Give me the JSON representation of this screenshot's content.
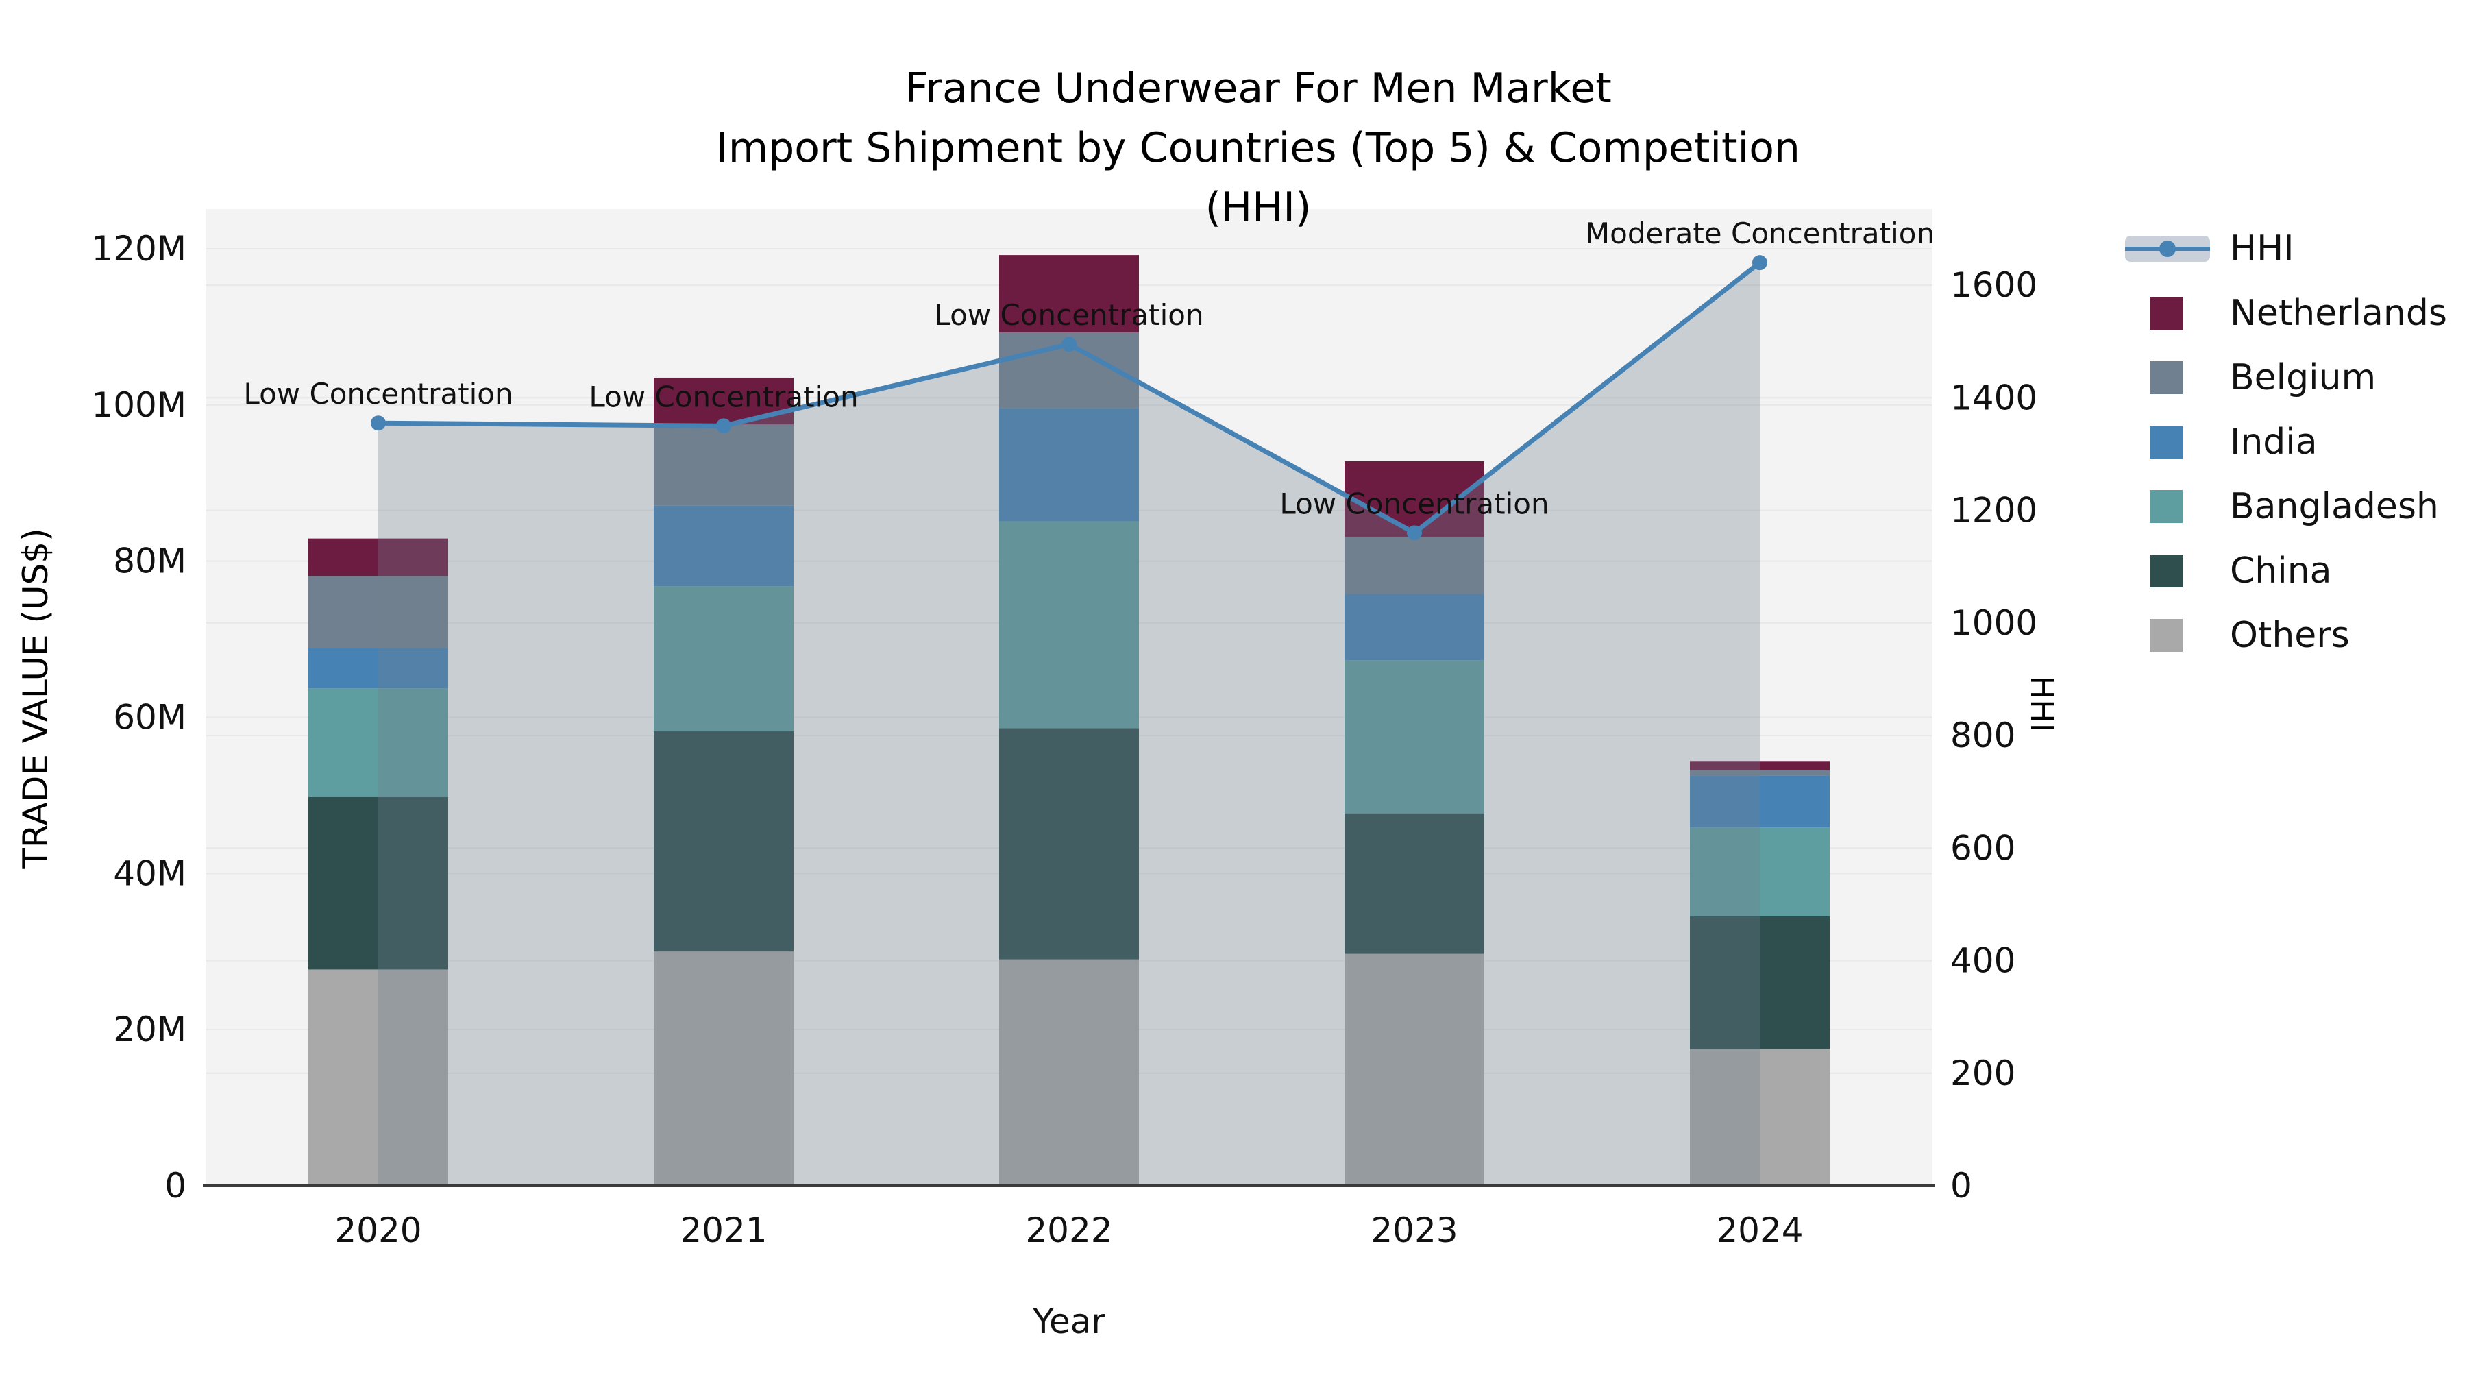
{
  "title": {
    "line1": "France Underwear For Men Market",
    "line2": "Import Shipment by Countries (Top 5) & Competition (HHI)"
  },
  "axes": {
    "x_label": "Year",
    "y_left_label": "TRADE VALUE (US$)",
    "y_right_label": "HHI",
    "y_left_ticks": [
      "0",
      "20M",
      "40M",
      "60M",
      "80M",
      "100M",
      "120M"
    ],
    "y_right_ticks": [
      "0",
      "200",
      "400",
      "600",
      "800",
      "1000",
      "1200",
      "1400",
      "1600"
    ]
  },
  "chart_data": {
    "type": "bar",
    "subtype": "stacked-bars-with-line",
    "categories": [
      "2020",
      "2021",
      "2022",
      "2023",
      "2024"
    ],
    "xlabel": "Year",
    "ylabel_left": "TRADE VALUE (US$)",
    "ylabel_right": "HHI",
    "ylim_left_millions": [
      0,
      125
    ],
    "ylim_right": [
      0,
      1735
    ],
    "grid": true,
    "legend_position": "right",
    "series": [
      {
        "name": "Netherlands",
        "color": "#6d1c41",
        "values_millions": [
          4.8,
          6.0,
          9.9,
          9.7,
          1.2
        ]
      },
      {
        "name": "Belgium",
        "color": "#708090",
        "values_millions": [
          9.2,
          10.4,
          9.7,
          7.3,
          0.7
        ]
      },
      {
        "name": "India",
        "color": "#4682b4",
        "values_millions": [
          5.2,
          10.3,
          14.5,
          8.5,
          6.6
        ]
      },
      {
        "name": "Bangladesh",
        "color": "#5f9ea0",
        "values_millions": [
          13.9,
          18.6,
          26.5,
          19.6,
          11.4
        ]
      },
      {
        "name": "China",
        "color": "#2f4f4f",
        "values_millions": [
          22.1,
          28.2,
          29.6,
          18.0,
          17.0
        ]
      },
      {
        "name": "Others",
        "color": "#a9a9a9",
        "values_millions": [
          27.7,
          30.0,
          29.0,
          29.7,
          17.5
        ]
      }
    ],
    "stack_order_bottom_to_top": [
      "Others",
      "China",
      "Bangladesh",
      "India",
      "Belgium",
      "Netherlands"
    ],
    "bar_totals_millions": [
      82.9,
      103.5,
      119.2,
      92.8,
      54.4
    ],
    "hhi_line": {
      "name": "HHI",
      "color": "#4682b4",
      "area_fill": "rgba(112,128,144,0.32)",
      "values": [
        1355,
        1350,
        1495,
        1160,
        1640
      ],
      "annotations": [
        "Low Concentration",
        "Low Concentration",
        "Low Concentration",
        "Low Concentration",
        "Moderate Concentration"
      ]
    }
  },
  "legend": {
    "items": [
      {
        "label": "HHI",
        "type": "line",
        "color": "#4682b4"
      },
      {
        "label": "Netherlands",
        "type": "square",
        "color": "#6d1c41"
      },
      {
        "label": "Belgium",
        "type": "square",
        "color": "#708090"
      },
      {
        "label": "India",
        "type": "square",
        "color": "#4682b4"
      },
      {
        "label": "Bangladesh",
        "type": "square",
        "color": "#5f9ea0"
      },
      {
        "label": "China",
        "type": "square",
        "color": "#2f4f4f"
      },
      {
        "label": "Others",
        "type": "square",
        "color": "#a9a9a9"
      }
    ]
  },
  "colors": {
    "plot_background": "#f3f3f3",
    "gridline": "#e8e8e8",
    "axis_spine": "#3a3a3a",
    "text": "#111111",
    "hhi_line": "#4682b4",
    "hhi_area": "rgba(112,128,144,0.32)"
  }
}
